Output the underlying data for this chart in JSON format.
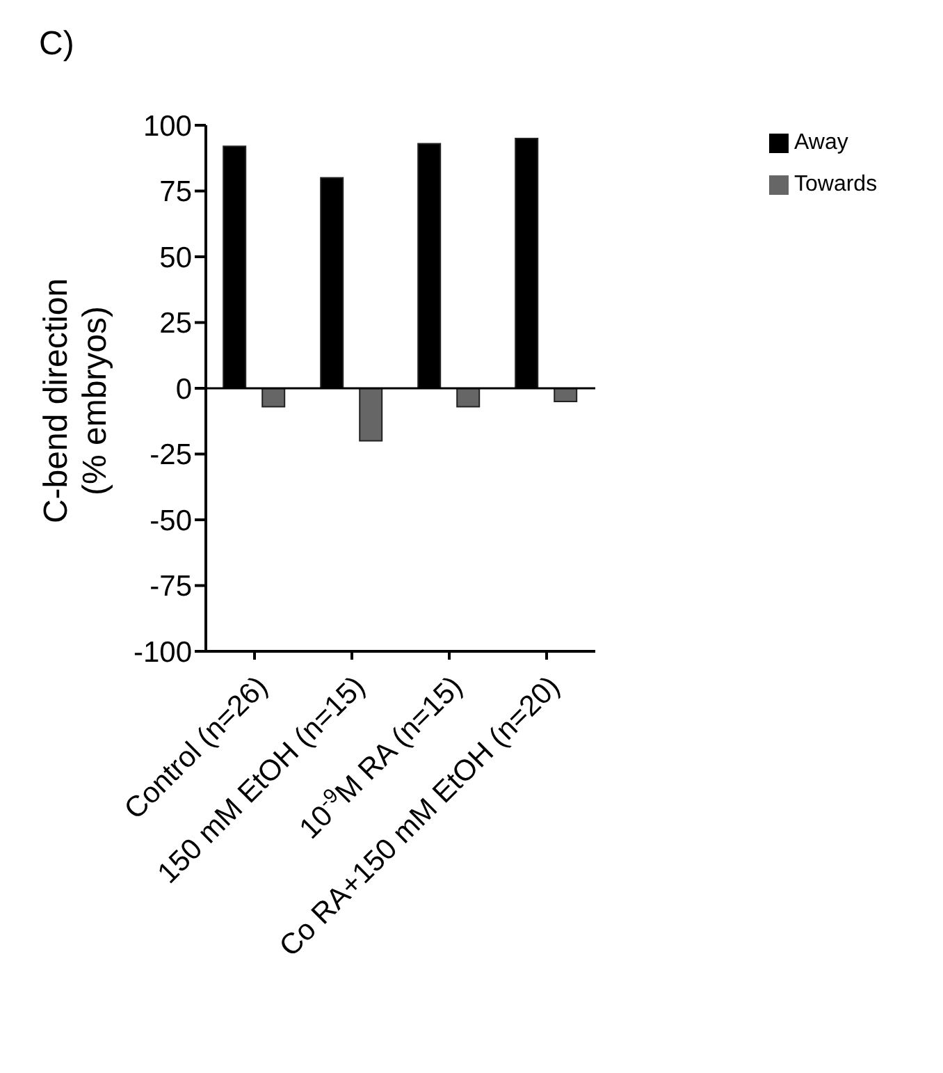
{
  "chart_data": {
    "type": "bar",
    "ylabel": "C-bend direction\n(% embryos)",
    "annotations": [
      "C)"
    ],
    "categories": [
      "Control (n=26)",
      "150 mM EtOH (n=15)",
      "10$^{-9}$M RA (n=15)",
      "Co RA+150 mM EtOH (n=20)"
    ],
    "series": [
      {
        "name": "Away",
        "color": "#000000",
        "values": [
          92,
          80,
          93,
          95
        ]
      },
      {
        "name": "Towards",
        "color": "#666666",
        "values": [
          -7,
          -20,
          -7,
          -5
        ]
      }
    ],
    "ylim": [
      -100,
      100
    ],
    "yticks": [
      -100,
      -75,
      -50,
      -25,
      0,
      25,
      50,
      75,
      100
    ],
    "ref_lines": [
      {
        "axis": "y",
        "value": 0
      }
    ],
    "legend": "top right"
  }
}
